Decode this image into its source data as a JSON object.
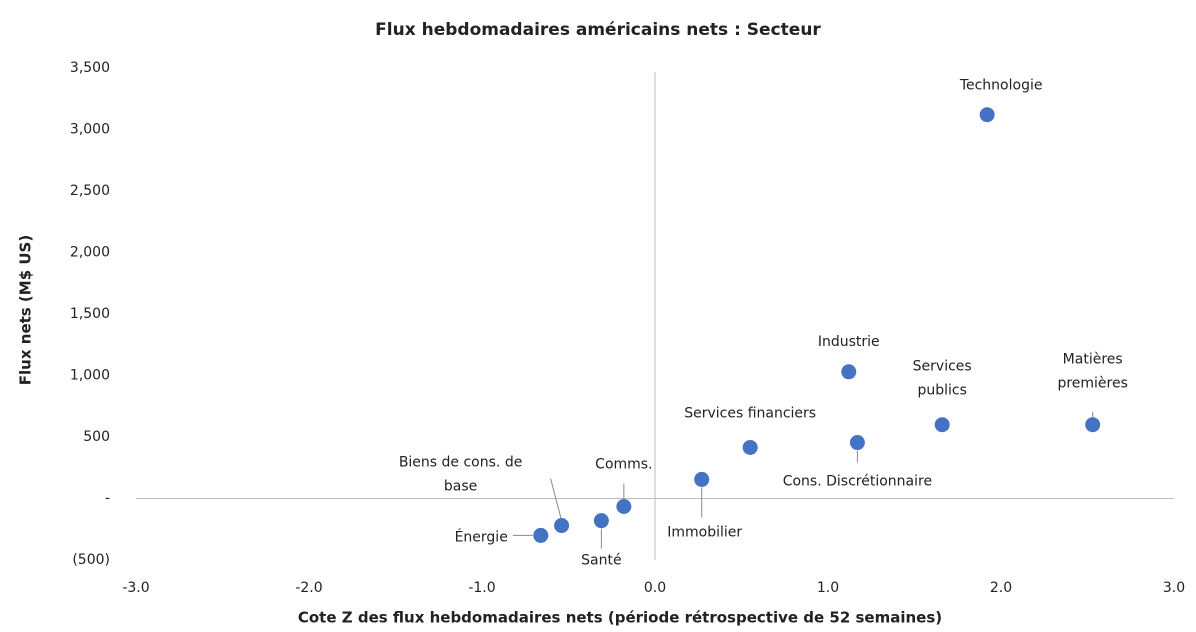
{
  "chart_data": {
    "type": "scatter",
    "title": "Flux hebdomadaires américains nets : Secteur",
    "x_label": "Cote Z des flux hebdomadaires nets (période rétrospective de 52 semaines)",
    "y_label": "Flux nets (M$ US)",
    "labels": [
      "Technologie",
      "Industrie",
      "Services publics",
      "Matières premières",
      "Services financiers",
      "Cons. Discrétionnaire",
      "Immobilier",
      "Comms.",
      "Santé",
      "Biens de cons. de base",
      "Énergie"
    ],
    "x": [
      1.92,
      1.12,
      1.66,
      2.53,
      0.55,
      1.17,
      0.27,
      -0.18,
      -0.31,
      -0.54,
      -0.66
    ],
    "values": [
      3120,
      1030,
      600,
      600,
      415,
      455,
      155,
      -65,
      -180,
      -220,
      -300
    ],
    "color": "#4472c4",
    "xlim": [
      -3,
      3
    ],
    "xticks": [
      {
        "value": -3,
        "label": "-3.0"
      },
      {
        "value": -2,
        "label": "-2.0"
      },
      {
        "value": -1,
        "label": "-1.0"
      },
      {
        "value": 0,
        "label": "0.0"
      },
      {
        "value": 1,
        "label": "1.0"
      },
      {
        "value": 2,
        "label": "2.0"
      },
      {
        "value": 3,
        "label": "3.0"
      }
    ],
    "ylim": [
      -500,
      3500
    ],
    "yticks": [
      {
        "value": -500,
        "label": "(500)"
      },
      {
        "value": 0,
        "label": "-"
      },
      {
        "value": 500,
        "label": "500"
      },
      {
        "value": 1000,
        "label": "1,000"
      },
      {
        "value": 1500,
        "label": "1,500"
      },
      {
        "value": 2000,
        "label": "2,000"
      },
      {
        "value": 2500,
        "label": "2,500"
      },
      {
        "value": 3000,
        "label": "3,000"
      },
      {
        "value": 3500,
        "label": "3,500"
      }
    ],
    "grid": false
  }
}
